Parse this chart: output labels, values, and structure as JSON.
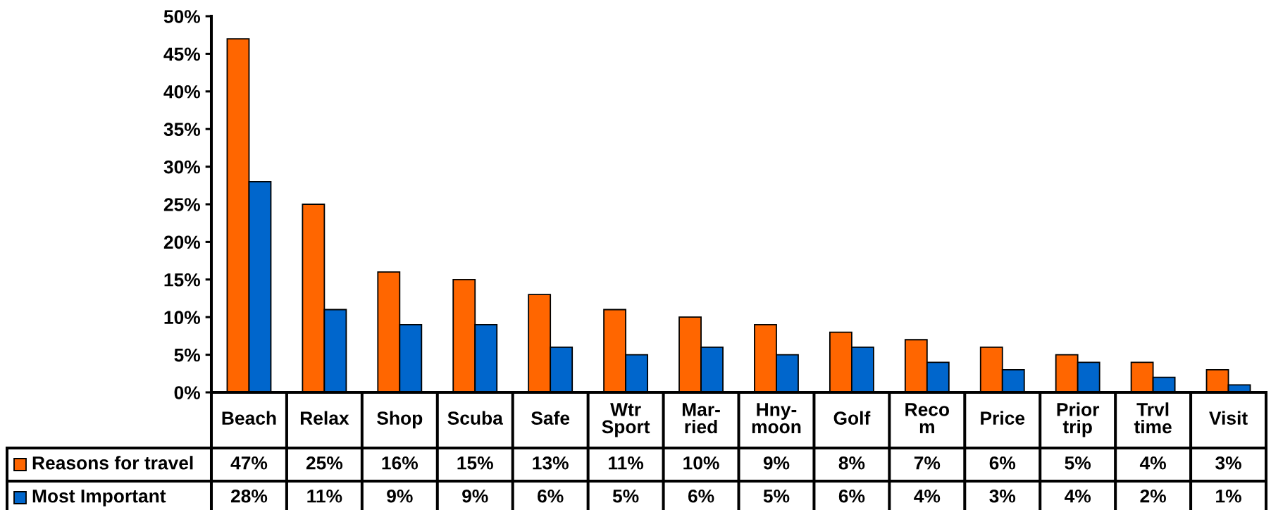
{
  "chart_data": {
    "type": "bar",
    "categories": [
      "Beach",
      "Relax",
      "Shop",
      "Scuba",
      "Safe",
      "Wtr\nSport",
      "Mar-\nried",
      "Hny-\nmoon",
      "Golf",
      "Reco\nm",
      "Price",
      "Prior\ntrip",
      "Trvl\ntime",
      "Visit"
    ],
    "series": [
      {
        "name": "Reasons for travel",
        "color": "#ff6600",
        "values": [
          47,
          25,
          16,
          15,
          13,
          11,
          10,
          9,
          8,
          7,
          6,
          5,
          4,
          3
        ],
        "value_labels": [
          "47%",
          "25%",
          "16%",
          "15%",
          "13%",
          "11%",
          "10%",
          "9%",
          "8%",
          "7%",
          "6%",
          "5%",
          "4%",
          "3%"
        ]
      },
      {
        "name": "Most Important",
        "color": "#0066cc",
        "values": [
          28,
          11,
          9,
          9,
          6,
          5,
          6,
          5,
          6,
          4,
          3,
          4,
          2,
          1
        ],
        "value_labels": [
          "28%",
          "11%",
          "9%",
          "9%",
          "6%",
          "5%",
          "6%",
          "5%",
          "6%",
          "4%",
          "3%",
          "4%",
          "2%",
          "1%"
        ]
      }
    ],
    "ylim": [
      0,
      50
    ],
    "yticks": [
      {
        "value": 0,
        "label": "0%"
      },
      {
        "value": 5,
        "label": "5%"
      },
      {
        "value": 10,
        "label": "10%"
      },
      {
        "value": 15,
        "label": "15%"
      },
      {
        "value": 20,
        "label": "20%"
      },
      {
        "value": 25,
        "label": "25%"
      },
      {
        "value": 30,
        "label": "30%"
      },
      {
        "value": 35,
        "label": "35%"
      },
      {
        "value": 40,
        "label": "40%"
      },
      {
        "value": 45,
        "label": "45%"
      },
      {
        "value": 50,
        "label": "50%"
      }
    ],
    "legend": "bottom"
  }
}
